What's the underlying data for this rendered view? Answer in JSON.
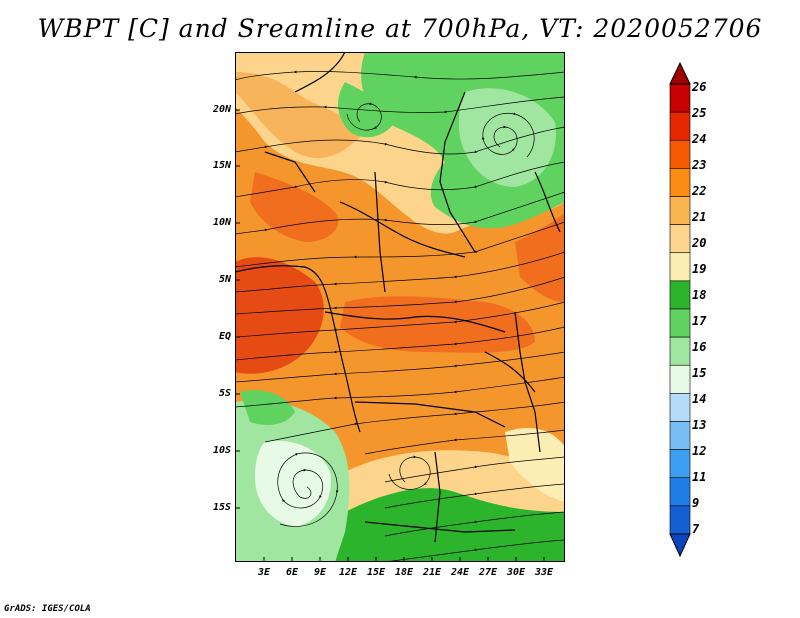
{
  "title": "WBPT [C] and Sreamline at 700hPa, VT: 2020052706",
  "credit": "GrADS: IGES/COLA",
  "lat_labels": [
    "20N",
    "15N",
    "10N",
    "5N",
    "EQ",
    "5S",
    "10S",
    "15S"
  ],
  "lon_labels": [
    "3E",
    "6E",
    "9E",
    "12E",
    "15E",
    "18E",
    "21E",
    "24E",
    "27E",
    "30E",
    "33E"
  ],
  "colorbar": {
    "labels": [
      "26",
      "25",
      "24",
      "23",
      "22",
      "21",
      "20",
      "19",
      "18",
      "17",
      "16",
      "15",
      "14",
      "13",
      "12",
      "11",
      "9",
      "7"
    ],
    "colors": [
      "#a00000",
      "#c80000",
      "#e62800",
      "#f55a00",
      "#fa8c14",
      "#fab450",
      "#fcd48c",
      "#fcedb4",
      "#2db42d",
      "#5fd25f",
      "#a0e6a0",
      "#e6fae6",
      "#b4dcfa",
      "#78bef5",
      "#3c9ef0",
      "#1e7ee6",
      "#1460d2",
      "#0a46be"
    ]
  },
  "map": {
    "field_colors": {
      "c24": "#e64b14",
      "c23": "#f06e1e",
      "c22": "#f5962d",
      "c21": "#f8b45a",
      "c20": "#fcd48c",
      "c19": "#fcedb4",
      "c18": "#2db42d",
      "c17": "#5fd25f",
      "c16": "#a0e6a0",
      "c15": "#e6fae6"
    }
  }
}
